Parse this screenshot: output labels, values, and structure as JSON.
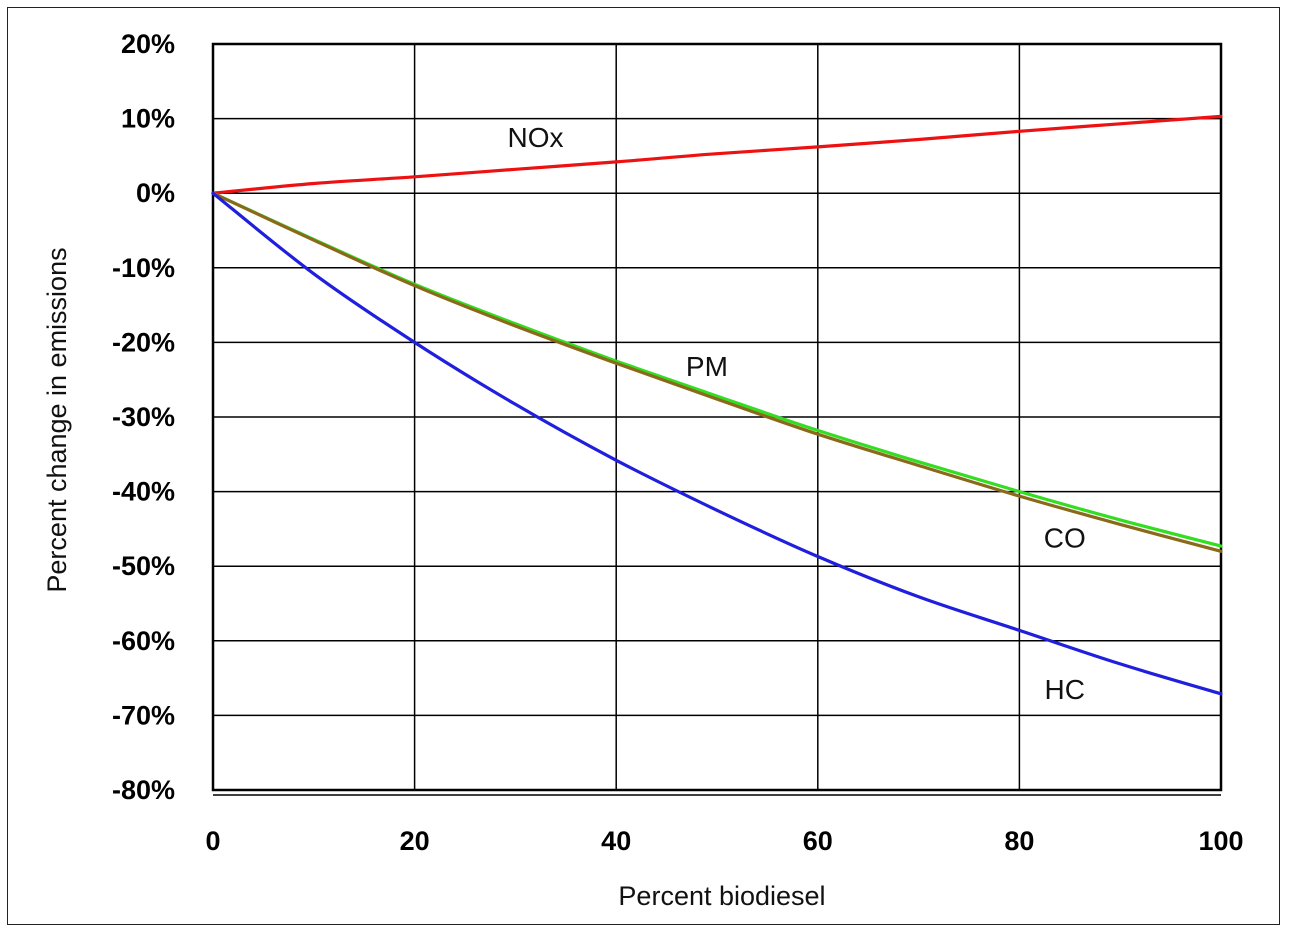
{
  "chart_data": {
    "type": "line",
    "xlabel": "Percent biodiesel",
    "ylabel": "Percent change in emissions",
    "xlim": [
      0,
      100
    ],
    "ylim": [
      -80,
      20
    ],
    "x_ticks": [
      0,
      20,
      40,
      60,
      80,
      100
    ],
    "x_tick_labels": [
      "0",
      "20",
      "40",
      "60",
      "80",
      "100"
    ],
    "y_ticks": [
      20,
      10,
      0,
      -10,
      -20,
      -30,
      -40,
      -50,
      -60,
      -70,
      -80
    ],
    "y_tick_labels": [
      "20%",
      "10%",
      "0%",
      "-10%",
      "-20%",
      "-30%",
      "-40%",
      "-50%",
      "-60%",
      "-70%",
      "-80%"
    ],
    "grid": true,
    "series": [
      {
        "name": "NOx",
        "color": "#ee1111",
        "x": [
          0,
          10,
          20,
          30,
          40,
          50,
          60,
          70,
          80,
          90,
          100
        ],
        "y": [
          0,
          1.3,
          2.2,
          3.2,
          4.2,
          5.3,
          6.2,
          7.2,
          8.3,
          9.3,
          10.3
        ]
      },
      {
        "name": "PM",
        "color": "#33dd22",
        "x": [
          0,
          10,
          20,
          30,
          40,
          50,
          60,
          70,
          80,
          90,
          100
        ],
        "y": [
          0,
          -6.2,
          -12.2,
          -17.5,
          -22.5,
          -27.2,
          -31.8,
          -36.0,
          -40.0,
          -43.8,
          -47.3
        ]
      },
      {
        "name": "CO",
        "color": "#8a6a1a",
        "x": [
          0,
          10,
          20,
          30,
          40,
          50,
          60,
          70,
          80,
          90,
          100
        ],
        "y": [
          0,
          -6.3,
          -12.4,
          -17.8,
          -22.8,
          -27.6,
          -32.3,
          -36.5,
          -40.6,
          -44.4,
          -48.0
        ]
      },
      {
        "name": "HC",
        "color": "#1f1fdd",
        "x": [
          0,
          10,
          20,
          30,
          40,
          50,
          60,
          70,
          80,
          90,
          100
        ],
        "y": [
          0,
          -10.8,
          -20.0,
          -28.3,
          -35.8,
          -42.5,
          -48.7,
          -54.1,
          -58.6,
          -63.1,
          -67.1
        ]
      }
    ],
    "annotations": [
      {
        "text": "NOx",
        "series": "NOx"
      },
      {
        "text": "PM",
        "series": "PM"
      },
      {
        "text": "CO",
        "series": "CO"
      },
      {
        "text": "HC",
        "series": "HC"
      }
    ]
  }
}
